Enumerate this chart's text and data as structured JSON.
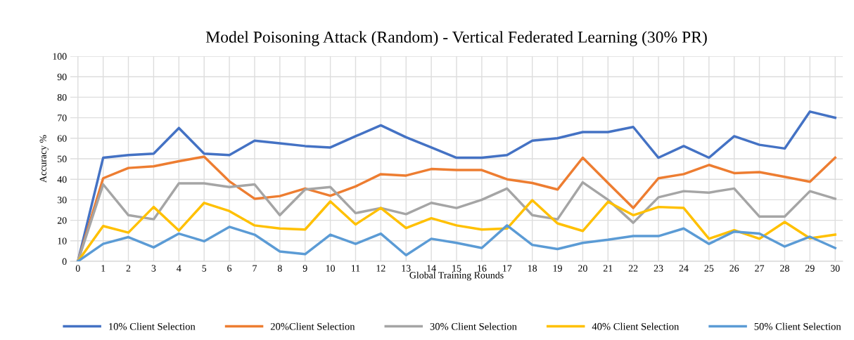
{
  "chart_data": {
    "type": "line",
    "title": "Model Poisoning Attack (Random) - Vertical Federated Learning (30% PR)",
    "xlabel": "Global Training Rounds",
    "ylabel": "Accuracy %",
    "categories": [
      "0",
      "1",
      "2",
      "3",
      "4",
      "5",
      "6",
      "7",
      "8",
      "9",
      "10",
      "11",
      "12",
      "13",
      "14",
      "15",
      "16",
      "17",
      "18",
      "19",
      "20",
      "21",
      "22",
      "23",
      "24",
      "25",
      "26",
      "27",
      "28",
      "29",
      "30"
    ],
    "series": [
      {
        "name": "10% Client Selection",
        "color": "#4472c4",
        "values": [
          0,
          50.5,
          51.8,
          52.5,
          65,
          52.5,
          51.8,
          58.8,
          57.5,
          56.2,
          55.5,
          61,
          66.3,
          60.5,
          55.5,
          50.5,
          50.5,
          51.8,
          58.8,
          60,
          63,
          63,
          65.5,
          50.5,
          56.2,
          50.5,
          61,
          56.8,
          55,
          73,
          70
        ]
      },
      {
        "name": "20%Client Selection",
        "color": "#ed7d31",
        "values": [
          0,
          40.5,
          45.5,
          46.3,
          48.8,
          51,
          39,
          30.5,
          31.8,
          35.5,
          32,
          36.5,
          42.5,
          41.8,
          45,
          44.5,
          44.5,
          40,
          38.2,
          35,
          50.5,
          38.2,
          26,
          40.5,
          42.5,
          47,
          43,
          43.5,
          41.2,
          38.8,
          50.5
        ]
      },
      {
        "name": "30% Client Selection",
        "color": "#a5a5a5",
        "values": [
          0,
          37.5,
          22.5,
          20.5,
          38,
          38,
          36.2,
          37.5,
          22.5,
          35,
          36.2,
          23.5,
          26,
          23,
          28.5,
          26,
          30,
          35.5,
          22.5,
          20.5,
          38.5,
          30,
          18.8,
          31.2,
          34.2,
          33.5,
          35.5,
          21.8,
          21.8,
          34.2,
          30.5
        ]
      },
      {
        "name": "40% Client Selection",
        "color": "#ffc000",
        "values": [
          0,
          17.2,
          14,
          26.5,
          15,
          28.5,
          24.5,
          17.5,
          16,
          15.5,
          29.2,
          18,
          26,
          16.2,
          21,
          17.5,
          15.5,
          16,
          29.8,
          18.5,
          14.8,
          29,
          22.5,
          26.5,
          26,
          11,
          15.2,
          11,
          19.2,
          11.2,
          13
        ]
      },
      {
        "name": "50% Client Selection",
        "color": "#5b9bd5",
        "values": [
          0,
          8.5,
          11.8,
          6.8,
          13.5,
          9.8,
          16.8,
          13,
          4.8,
          3.5,
          13,
          8.5,
          13.5,
          3,
          11,
          9,
          6.5,
          17.5,
          8,
          6,
          9,
          10.5,
          12.3,
          12.3,
          16,
          8.5,
          14.5,
          13.5,
          7.2,
          12,
          6.5
        ]
      }
    ],
    "ylim": [
      0,
      100
    ],
    "yticks": [
      0,
      10,
      20,
      30,
      40,
      50,
      60,
      70,
      80,
      90,
      100
    ],
    "grid": true,
    "legend": "bottom",
    "marker": "none",
    "line_style": "solid"
  }
}
